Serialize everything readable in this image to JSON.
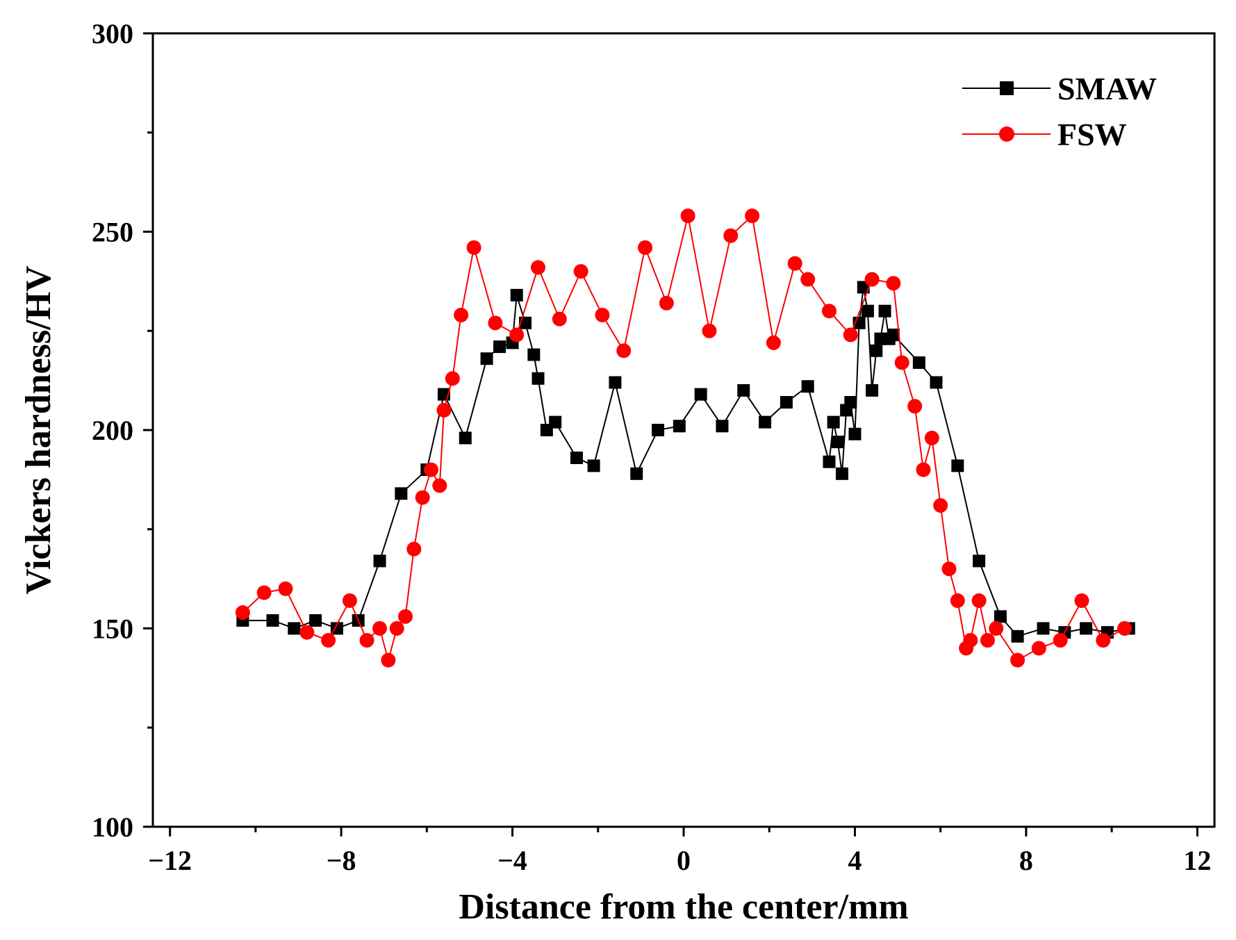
{
  "chart_data": {
    "type": "line",
    "xlabel": "Distance from the center/mm",
    "ylabel": "Vickers hardness/HV",
    "xlim": [
      -12.4,
      12.4
    ],
    "ylim": [
      100,
      300
    ],
    "xticks": [
      -12,
      -8,
      -4,
      0,
      4,
      8,
      12
    ],
    "xtick_labels": [
      "−12",
      "−8",
      "−4",
      "0",
      "4",
      "8",
      "12"
    ],
    "yticks": [
      100,
      150,
      200,
      250,
      300
    ],
    "ytick_labels": [
      "100",
      "150",
      "200",
      "250",
      "300"
    ],
    "legend_position": "top-right",
    "series": [
      {
        "name": "SMAW",
        "color": "#000000",
        "marker": "square",
        "x": [
          -10.3,
          -9.6,
          -9.1,
          -8.6,
          -8.1,
          -7.6,
          -7.1,
          -6.6,
          -6.0,
          -5.6,
          -5.1,
          -4.6,
          -4.3,
          -4.0,
          -3.9,
          -3.7,
          -3.5,
          -3.4,
          -3.2,
          -3.0,
          -2.5,
          -2.1,
          -1.6,
          -1.1,
          -0.6,
          -0.1,
          0.4,
          0.9,
          1.4,
          1.9,
          2.4,
          2.9,
          3.4,
          3.5,
          3.6,
          3.7,
          3.8,
          3.9,
          4.0,
          4.1,
          4.2,
          4.3,
          4.4,
          4.5,
          4.6,
          4.7,
          4.8,
          4.9,
          5.5,
          5.9,
          6.4,
          6.9,
          7.4,
          7.8,
          8.4,
          8.9,
          9.4,
          9.9,
          10.4
        ],
        "y": [
          152,
          152,
          150,
          152,
          150,
          152,
          167,
          184,
          190,
          209,
          198,
          218,
          221,
          222,
          234,
          227,
          219,
          213,
          200,
          202,
          193,
          191,
          212,
          189,
          200,
          201,
          209,
          201,
          210,
          202,
          207,
          211,
          192,
          202,
          197,
          189,
          205,
          207,
          199,
          227,
          236,
          230,
          210,
          220,
          223,
          230,
          223,
          224,
          217,
          212,
          191,
          167,
          153,
          148,
          150,
          149,
          150,
          149,
          150
        ]
      },
      {
        "name": "FSW",
        "color": "#ff0000",
        "marker": "circle",
        "x": [
          -10.3,
          -9.8,
          -9.3,
          -8.8,
          -8.3,
          -7.8,
          -7.4,
          -7.1,
          -6.9,
          -6.7,
          -6.5,
          -6.3,
          -6.1,
          -5.9,
          -5.7,
          -5.6,
          -5.4,
          -5.2,
          -4.9,
          -4.4,
          -3.9,
          -3.4,
          -2.9,
          -2.4,
          -1.9,
          -1.4,
          -0.9,
          -0.4,
          0.1,
          0.6,
          1.1,
          1.6,
          2.1,
          2.6,
          2.9,
          3.4,
          3.9,
          4.4,
          4.9,
          5.1,
          5.4,
          5.6,
          5.8,
          6.0,
          6.2,
          6.4,
          6.6,
          6.7,
          6.9,
          7.1,
          7.3,
          7.8,
          8.3,
          8.8,
          9.3,
          9.8,
          10.3
        ],
        "y": [
          154,
          159,
          160,
          149,
          147,
          157,
          147,
          150,
          142,
          150,
          153,
          170,
          183,
          190,
          186,
          205,
          213,
          229,
          246,
          227,
          224,
          241,
          228,
          240,
          229,
          220,
          246,
          232,
          254,
          225,
          249,
          254,
          222,
          242,
          238,
          230,
          224,
          238,
          237,
          217,
          206,
          190,
          198,
          181,
          165,
          157,
          145,
          147,
          157,
          147,
          150,
          142,
          145,
          147,
          157,
          147,
          150
        ]
      }
    ]
  }
}
